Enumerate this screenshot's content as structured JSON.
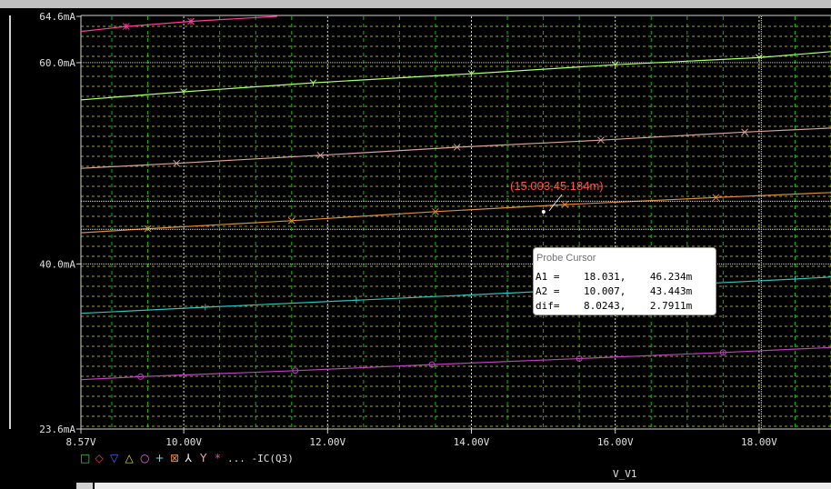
{
  "chart_data": {
    "type": "line",
    "title": "",
    "xlabel": "V_V1",
    "ylabel": "",
    "xlim": [
      8.57,
      19.0
    ],
    "ylim": [
      23.6,
      64.6
    ],
    "x_ticks": [
      8.57,
      10.0,
      12.0,
      14.0,
      16.0,
      18.0
    ],
    "x_tick_labels": [
      "8.57V",
      "10.00V",
      "12.00V",
      "14.00V",
      "16.00V",
      "18.00V"
    ],
    "y_ticks": [
      23.6,
      40.0,
      60.0,
      64.6
    ],
    "y_tick_labels": [
      "23.6mA",
      "40.0mA",
      "60.0mA",
      "64.6mA"
    ],
    "grid": true,
    "legend_position": "bottom-left",
    "series": [
      {
        "color": "#c03ec0",
        "marker": "o",
        "x": [
          8.57,
          9.4,
          11.55,
          13.45,
          15.5,
          17.5,
          19.0
        ],
        "y": [
          28.5,
          28.8,
          29.4,
          30.0,
          30.6,
          31.2,
          31.7
        ]
      },
      {
        "color": "#2ec0c0",
        "marker": "+",
        "x": [
          8.57,
          10.3,
          12.4,
          14.5,
          16.5,
          18.5,
          19.0
        ],
        "y": [
          35.1,
          35.7,
          36.4,
          37.1,
          37.8,
          38.5,
          38.7
        ]
      },
      {
        "color": "#e08a3c",
        "marker": "x",
        "x": [
          8.57,
          9.5,
          11.5,
          13.5,
          15.3,
          17.4,
          19.0
        ],
        "y": [
          43.1,
          43.5,
          44.3,
          45.2,
          45.9,
          46.6,
          47.1
        ]
      },
      {
        "color": "#d8a0a0",
        "marker": "x",
        "x": [
          8.57,
          9.9,
          11.9,
          13.8,
          15.8,
          17.8,
          19.0
        ],
        "y": [
          49.5,
          50.0,
          50.8,
          51.6,
          52.3,
          53.1,
          53.5
        ]
      },
      {
        "color": "#a8ff70",
        "marker": "Y",
        "x": [
          8.57,
          10.0,
          11.8,
          14.0,
          16.0,
          18.0,
          19.0
        ],
        "y": [
          56.3,
          57.1,
          58.0,
          58.9,
          59.8,
          60.5,
          61.1
        ]
      },
      {
        "color": "#ff3c9c",
        "marker": "*",
        "x": [
          8.57,
          9.2,
          10.1,
          11.3
        ],
        "y": [
          63.1,
          63.6,
          64.1,
          64.6
        ]
      }
    ],
    "annotation": "(15.003,45.184m)",
    "annotation_point": [
      15.003,
      45.184
    ]
  },
  "legend": {
    "symbols": [
      "□",
      "◇",
      "▽",
      "△",
      "○",
      "+",
      "⊠",
      "⅄",
      "Y",
      "*"
    ],
    "colors": [
      "#40e040",
      "#ff4040",
      "#6060ff",
      "#e0e040",
      "#ff60ff",
      "#60e0e0",
      "#e08a3c",
      "#ffffff",
      "#ffa0a0",
      "#ff40a0"
    ],
    "trace_label": "... -IC(Q3)"
  },
  "probe_cursor": {
    "title": "Probe Cursor",
    "rows": [
      {
        "label": "A1 =",
        "x": "18.031,",
        "y": "46.234m"
      },
      {
        "label": "A2 =",
        "x": "10.007,",
        "y": "43.443m"
      },
      {
        "label": "dif=",
        "x": "8.0243,",
        "y": "2.7911m"
      }
    ]
  },
  "colors": {
    "background": "#000000",
    "grid": "#c8c800",
    "grid_v": "#00c000",
    "axis_text": "#e0e0e0",
    "annotation": "#ff5050"
  }
}
